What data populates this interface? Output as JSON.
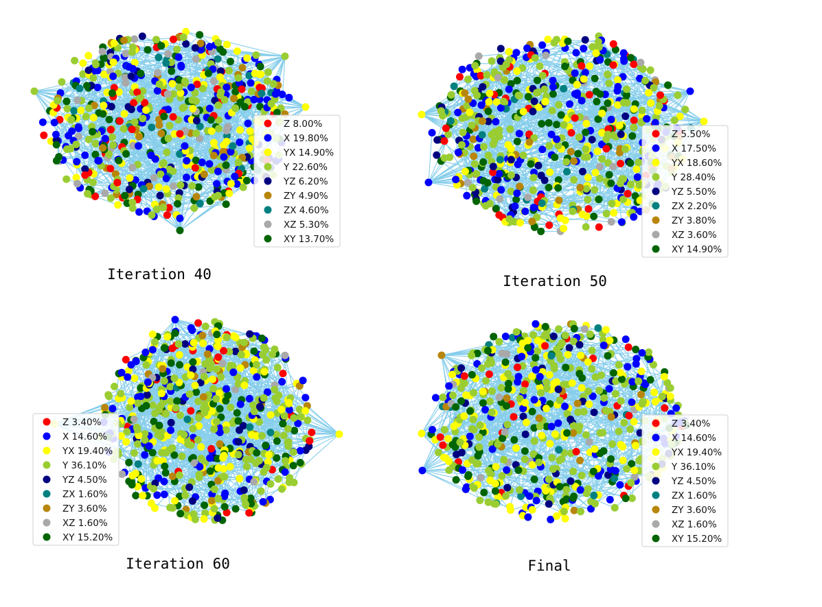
{
  "colors": {
    "Z": "#ff0000",
    "X": "#0000ff",
    "YX": "#ffff00",
    "Y": "#9acd32",
    "YZ": "#000080",
    "ZX": "#008080",
    "ZY": "#b8860b",
    "XZ": "#a9a9a9",
    "XY": "#006400",
    "edge": "#87ceeb"
  },
  "chart_data": [
    {
      "type": "scatter",
      "title": "Iteration 40",
      "legend_position": "right",
      "series": [
        {
          "name": "Z",
          "share": 8.0,
          "label": "Z 8.00%"
        },
        {
          "name": "X",
          "share": 19.8,
          "label": "X 19.80%"
        },
        {
          "name": "YX",
          "share": 14.9,
          "label": "YX 14.90%"
        },
        {
          "name": "Y",
          "share": 22.6,
          "label": "Y 22.60%"
        },
        {
          "name": "YZ",
          "share": 6.2,
          "label": "YZ 6.20%"
        },
        {
          "name": "ZY",
          "share": 4.9,
          "label": "ZY 4.90%"
        },
        {
          "name": "ZX",
          "share": 4.6,
          "label": "ZX 4.60%"
        },
        {
          "name": "XZ",
          "share": 5.3,
          "label": "XZ 5.30%"
        },
        {
          "name": "XY",
          "share": 13.7,
          "label": "XY 13.70%"
        }
      ]
    },
    {
      "type": "scatter",
      "title": "Iteration 50",
      "legend_position": "right",
      "series": [
        {
          "name": "Z",
          "share": 5.5,
          "label": "Z 5.50%"
        },
        {
          "name": "X",
          "share": 17.5,
          "label": "X 17.50%"
        },
        {
          "name": "YX",
          "share": 18.6,
          "label": "YX 18.60%"
        },
        {
          "name": "Y",
          "share": 28.4,
          "label": "Y 28.40%"
        },
        {
          "name": "YZ",
          "share": 5.5,
          "label": "YZ 5.50%"
        },
        {
          "name": "ZX",
          "share": 2.2,
          "label": "ZX 2.20%"
        },
        {
          "name": "ZY",
          "share": 3.8,
          "label": "ZY 3.80%"
        },
        {
          "name": "XZ",
          "share": 3.6,
          "label": "XZ 3.60%"
        },
        {
          "name": "XY",
          "share": 14.9,
          "label": "XY 14.90%"
        }
      ]
    },
    {
      "type": "scatter",
      "title": "Iteration 60",
      "legend_position": "left",
      "series": [
        {
          "name": "Z",
          "share": 3.4,
          "label": "Z 3.40%"
        },
        {
          "name": "X",
          "share": 14.6,
          "label": "X 14.60%"
        },
        {
          "name": "YX",
          "share": 19.4,
          "label": "YX 19.40%"
        },
        {
          "name": "Y",
          "share": 36.1,
          "label": "Y 36.10%"
        },
        {
          "name": "YZ",
          "share": 4.5,
          "label": "YZ 4.50%"
        },
        {
          "name": "ZX",
          "share": 1.6,
          "label": "ZX 1.60%"
        },
        {
          "name": "ZY",
          "share": 3.6,
          "label": "ZY 3.60%"
        },
        {
          "name": "XZ",
          "share": 1.6,
          "label": "XZ 1.60%"
        },
        {
          "name": "XY",
          "share": 15.2,
          "label": "XY 15.20%"
        }
      ]
    },
    {
      "type": "scatter",
      "title": "Final",
      "legend_position": "right",
      "series": [
        {
          "name": "Z",
          "share": 3.4,
          "label": "Z 3.40%"
        },
        {
          "name": "X",
          "share": 14.6,
          "label": "X 14.60%"
        },
        {
          "name": "YX",
          "share": 19.4,
          "label": "YX 19.40%"
        },
        {
          "name": "Y",
          "share": 36.1,
          "label": "Y 36.10%"
        },
        {
          "name": "YZ",
          "share": 4.5,
          "label": "YZ 4.50%"
        },
        {
          "name": "ZX",
          "share": 1.6,
          "label": "ZX 1.60%"
        },
        {
          "name": "ZY",
          "share": 3.6,
          "label": "ZY 3.60%"
        },
        {
          "name": "XZ",
          "share": 1.6,
          "label": "XZ 1.60%"
        },
        {
          "name": "XY",
          "share": 15.2,
          "label": "XY 15.20%"
        }
      ]
    }
  ]
}
